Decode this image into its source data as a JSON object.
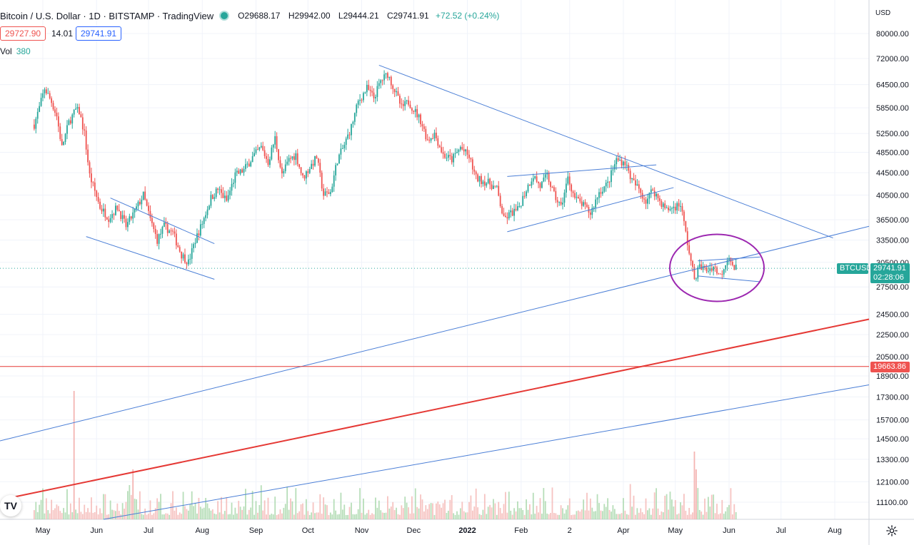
{
  "header": {
    "symbol": "Bitcoin / U.S. Dollar · 1D · BITSTAMP · TradingView",
    "open": "O29688.17",
    "high": "H29942.00",
    "low": "L29444.21",
    "close": "C29741.91",
    "change": "+72.52 (+0.24%)",
    "bid": "29727.90",
    "spread": "14.01",
    "ask": "29741.91",
    "volume_label": "Vol",
    "volume_value": "380"
  },
  "price_axis": {
    "currency": "USD",
    "ticks": [
      "80000.00",
      "72000.00",
      "64500.00",
      "58500.00",
      "52500.00",
      "48500.00",
      "44500.00",
      "40500.00",
      "36500.00",
      "33500.00",
      "30500.00",
      "27500.00",
      "24500.00",
      "22500.00",
      "20500.00",
      "18900.00",
      "17300.00",
      "15700.00",
      "14500.00",
      "13300.00",
      "12100.00",
      "11100.00"
    ]
  },
  "time_axis": {
    "labels": [
      "May",
      "Jun",
      "Jul",
      "Aug",
      "Sep",
      "Oct",
      "Nov",
      "Dec",
      "2022",
      "Feb",
      "2",
      "Apr",
      "May",
      "Jun",
      "Jul",
      "Aug"
    ]
  },
  "markers": {
    "symbol_tag": "BTCUSD",
    "last_price": "29741.91",
    "countdown": "02:28:06",
    "horizontal_level": "19663.86"
  },
  "colors": {
    "up": "#26a69a",
    "down": "#ef5350",
    "trendline": "#4a7ed6",
    "red_line": "#e53935",
    "circle": "#9c27b0"
  },
  "chart_data": {
    "type": "candlestick",
    "symbol": "BTCUSD",
    "interval": "1D",
    "scale": "log",
    "ylim": [
      10500,
      85000
    ],
    "x_range": [
      "2021-04-26",
      "2022-08-31"
    ],
    "monthly_closes": [
      {
        "x": "2021-04",
        "y": 57700
      },
      {
        "x": "2021-05",
        "y": 37300
      },
      {
        "x": "2021-06",
        "y": 35000
      },
      {
        "x": "2021-07",
        "y": 41500
      },
      {
        "x": "2021-08",
        "y": 47100
      },
      {
        "x": "2021-09",
        "y": 43800
      },
      {
        "x": "2021-10",
        "y": 61300
      },
      {
        "x": "2021-11",
        "y": 57000
      },
      {
        "x": "2021-12",
        "y": 46200
      },
      {
        "x": "2022-01",
        "y": 38500
      },
      {
        "x": "2022-02",
        "y": 43200
      },
      {
        "x": "2022-03",
        "y": 45500
      },
      {
        "x": "2022-04",
        "y": 37700
      },
      {
        "x": "2022-05",
        "y": 31800
      },
      {
        "x": "2022-06",
        "y": 29741.91
      }
    ],
    "series": [
      {
        "values": [
          29688.17,
          29942.0,
          29444.21,
          29741.91
        ]
      }
    ],
    "annotations": [
      {
        "type": "horizontal_line",
        "y": 19663.86
      },
      {
        "type": "ellipse",
        "x": "2022-05-26",
        "y": 29700
      }
    ]
  }
}
